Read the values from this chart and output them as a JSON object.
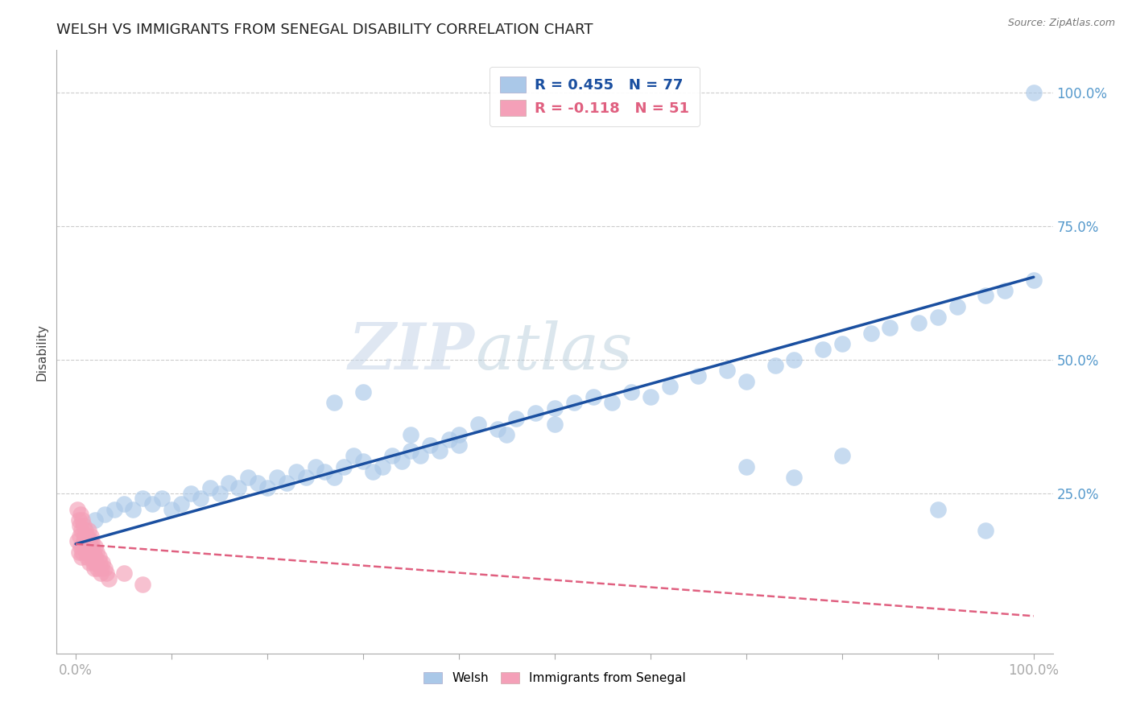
{
  "title": "WELSH VS IMMIGRANTS FROM SENEGAL DISABILITY CORRELATION CHART",
  "source": "Source: ZipAtlas.com",
  "ylabel": "Disability",
  "xlim": [
    -0.02,
    1.02
  ],
  "ylim": [
    -0.05,
    1.08
  ],
  "welsh_R": 0.455,
  "welsh_N": 77,
  "senegal_R": -0.118,
  "senegal_N": 51,
  "welsh_color": "#aac8e8",
  "senegal_color": "#f4a0b8",
  "welsh_line_color": "#1a4fa0",
  "senegal_line_color": "#e06080",
  "watermark_color": "#ccd8e8",
  "background_color": "#ffffff",
  "title_fontsize": 13,
  "axis_label_color": "#5599cc",
  "grid_color": "#cccccc",
  "welsh_x": [
    0.02,
    0.03,
    0.04,
    0.05,
    0.06,
    0.07,
    0.08,
    0.09,
    0.1,
    0.11,
    0.12,
    0.13,
    0.14,
    0.15,
    0.16,
    0.17,
    0.18,
    0.19,
    0.2,
    0.21,
    0.22,
    0.23,
    0.24,
    0.25,
    0.26,
    0.27,
    0.28,
    0.29,
    0.3,
    0.31,
    0.32,
    0.33,
    0.34,
    0.35,
    0.36,
    0.37,
    0.38,
    0.39,
    0.4,
    0.42,
    0.44,
    0.46,
    0.48,
    0.5,
    0.52,
    0.54,
    0.56,
    0.58,
    0.6,
    0.62,
    0.65,
    0.68,
    0.7,
    0.73,
    0.75,
    0.78,
    0.8,
    0.83,
    0.85,
    0.88,
    0.9,
    0.92,
    0.95,
    0.97,
    1.0,
    0.3,
    0.27,
    0.35,
    0.4,
    0.45,
    0.5,
    0.7,
    0.75,
    0.8,
    0.9,
    0.95,
    1.0
  ],
  "welsh_y": [
    0.2,
    0.21,
    0.22,
    0.23,
    0.22,
    0.24,
    0.23,
    0.24,
    0.22,
    0.23,
    0.25,
    0.24,
    0.26,
    0.25,
    0.27,
    0.26,
    0.28,
    0.27,
    0.26,
    0.28,
    0.27,
    0.29,
    0.28,
    0.3,
    0.29,
    0.28,
    0.3,
    0.32,
    0.31,
    0.29,
    0.3,
    0.32,
    0.31,
    0.33,
    0.32,
    0.34,
    0.33,
    0.35,
    0.36,
    0.38,
    0.37,
    0.39,
    0.4,
    0.41,
    0.42,
    0.43,
    0.42,
    0.44,
    0.43,
    0.45,
    0.47,
    0.48,
    0.46,
    0.49,
    0.5,
    0.52,
    0.53,
    0.55,
    0.56,
    0.57,
    0.58,
    0.6,
    0.62,
    0.63,
    0.65,
    0.44,
    0.42,
    0.36,
    0.34,
    0.36,
    0.38,
    0.3,
    0.28,
    0.32,
    0.22,
    0.18,
    1.0
  ],
  "senegal_x": [
    0.002,
    0.003,
    0.004,
    0.005,
    0.006,
    0.007,
    0.008,
    0.009,
    0.01,
    0.011,
    0.012,
    0.013,
    0.014,
    0.015,
    0.016,
    0.017,
    0.018,
    0.019,
    0.02,
    0.021,
    0.022,
    0.023,
    0.024,
    0.025,
    0.026,
    0.027,
    0.028,
    0.03,
    0.032,
    0.034,
    0.002,
    0.003,
    0.004,
    0.005,
    0.006,
    0.007,
    0.008,
    0.009,
    0.01,
    0.011,
    0.012,
    0.013,
    0.014,
    0.015,
    0.016,
    0.017,
    0.018,
    0.019,
    0.02,
    0.05,
    0.07
  ],
  "senegal_y": [
    0.16,
    0.14,
    0.17,
    0.15,
    0.13,
    0.14,
    0.16,
    0.15,
    0.17,
    0.14,
    0.13,
    0.15,
    0.12,
    0.14,
    0.13,
    0.15,
    0.12,
    0.11,
    0.13,
    0.12,
    0.14,
    0.11,
    0.13,
    0.12,
    0.1,
    0.11,
    0.12,
    0.11,
    0.1,
    0.09,
    0.22,
    0.2,
    0.19,
    0.21,
    0.18,
    0.2,
    0.19,
    0.17,
    0.18,
    0.16,
    0.17,
    0.18,
    0.16,
    0.15,
    0.17,
    0.16,
    0.14,
    0.13,
    0.15,
    0.1,
    0.08
  ],
  "welsh_line_x0": 0.0,
  "welsh_line_y0": 0.155,
  "welsh_line_x1": 1.0,
  "welsh_line_y1": 0.655,
  "senegal_line_x0": 0.0,
  "senegal_line_y0": 0.155,
  "senegal_line_x1": 1.0,
  "senegal_line_y1": 0.02,
  "grid_yticks": [
    0.25,
    0.5,
    0.75,
    1.0
  ],
  "ytick_labels": [
    "25.0%",
    "50.0%",
    "75.0%",
    "100.0%"
  ]
}
